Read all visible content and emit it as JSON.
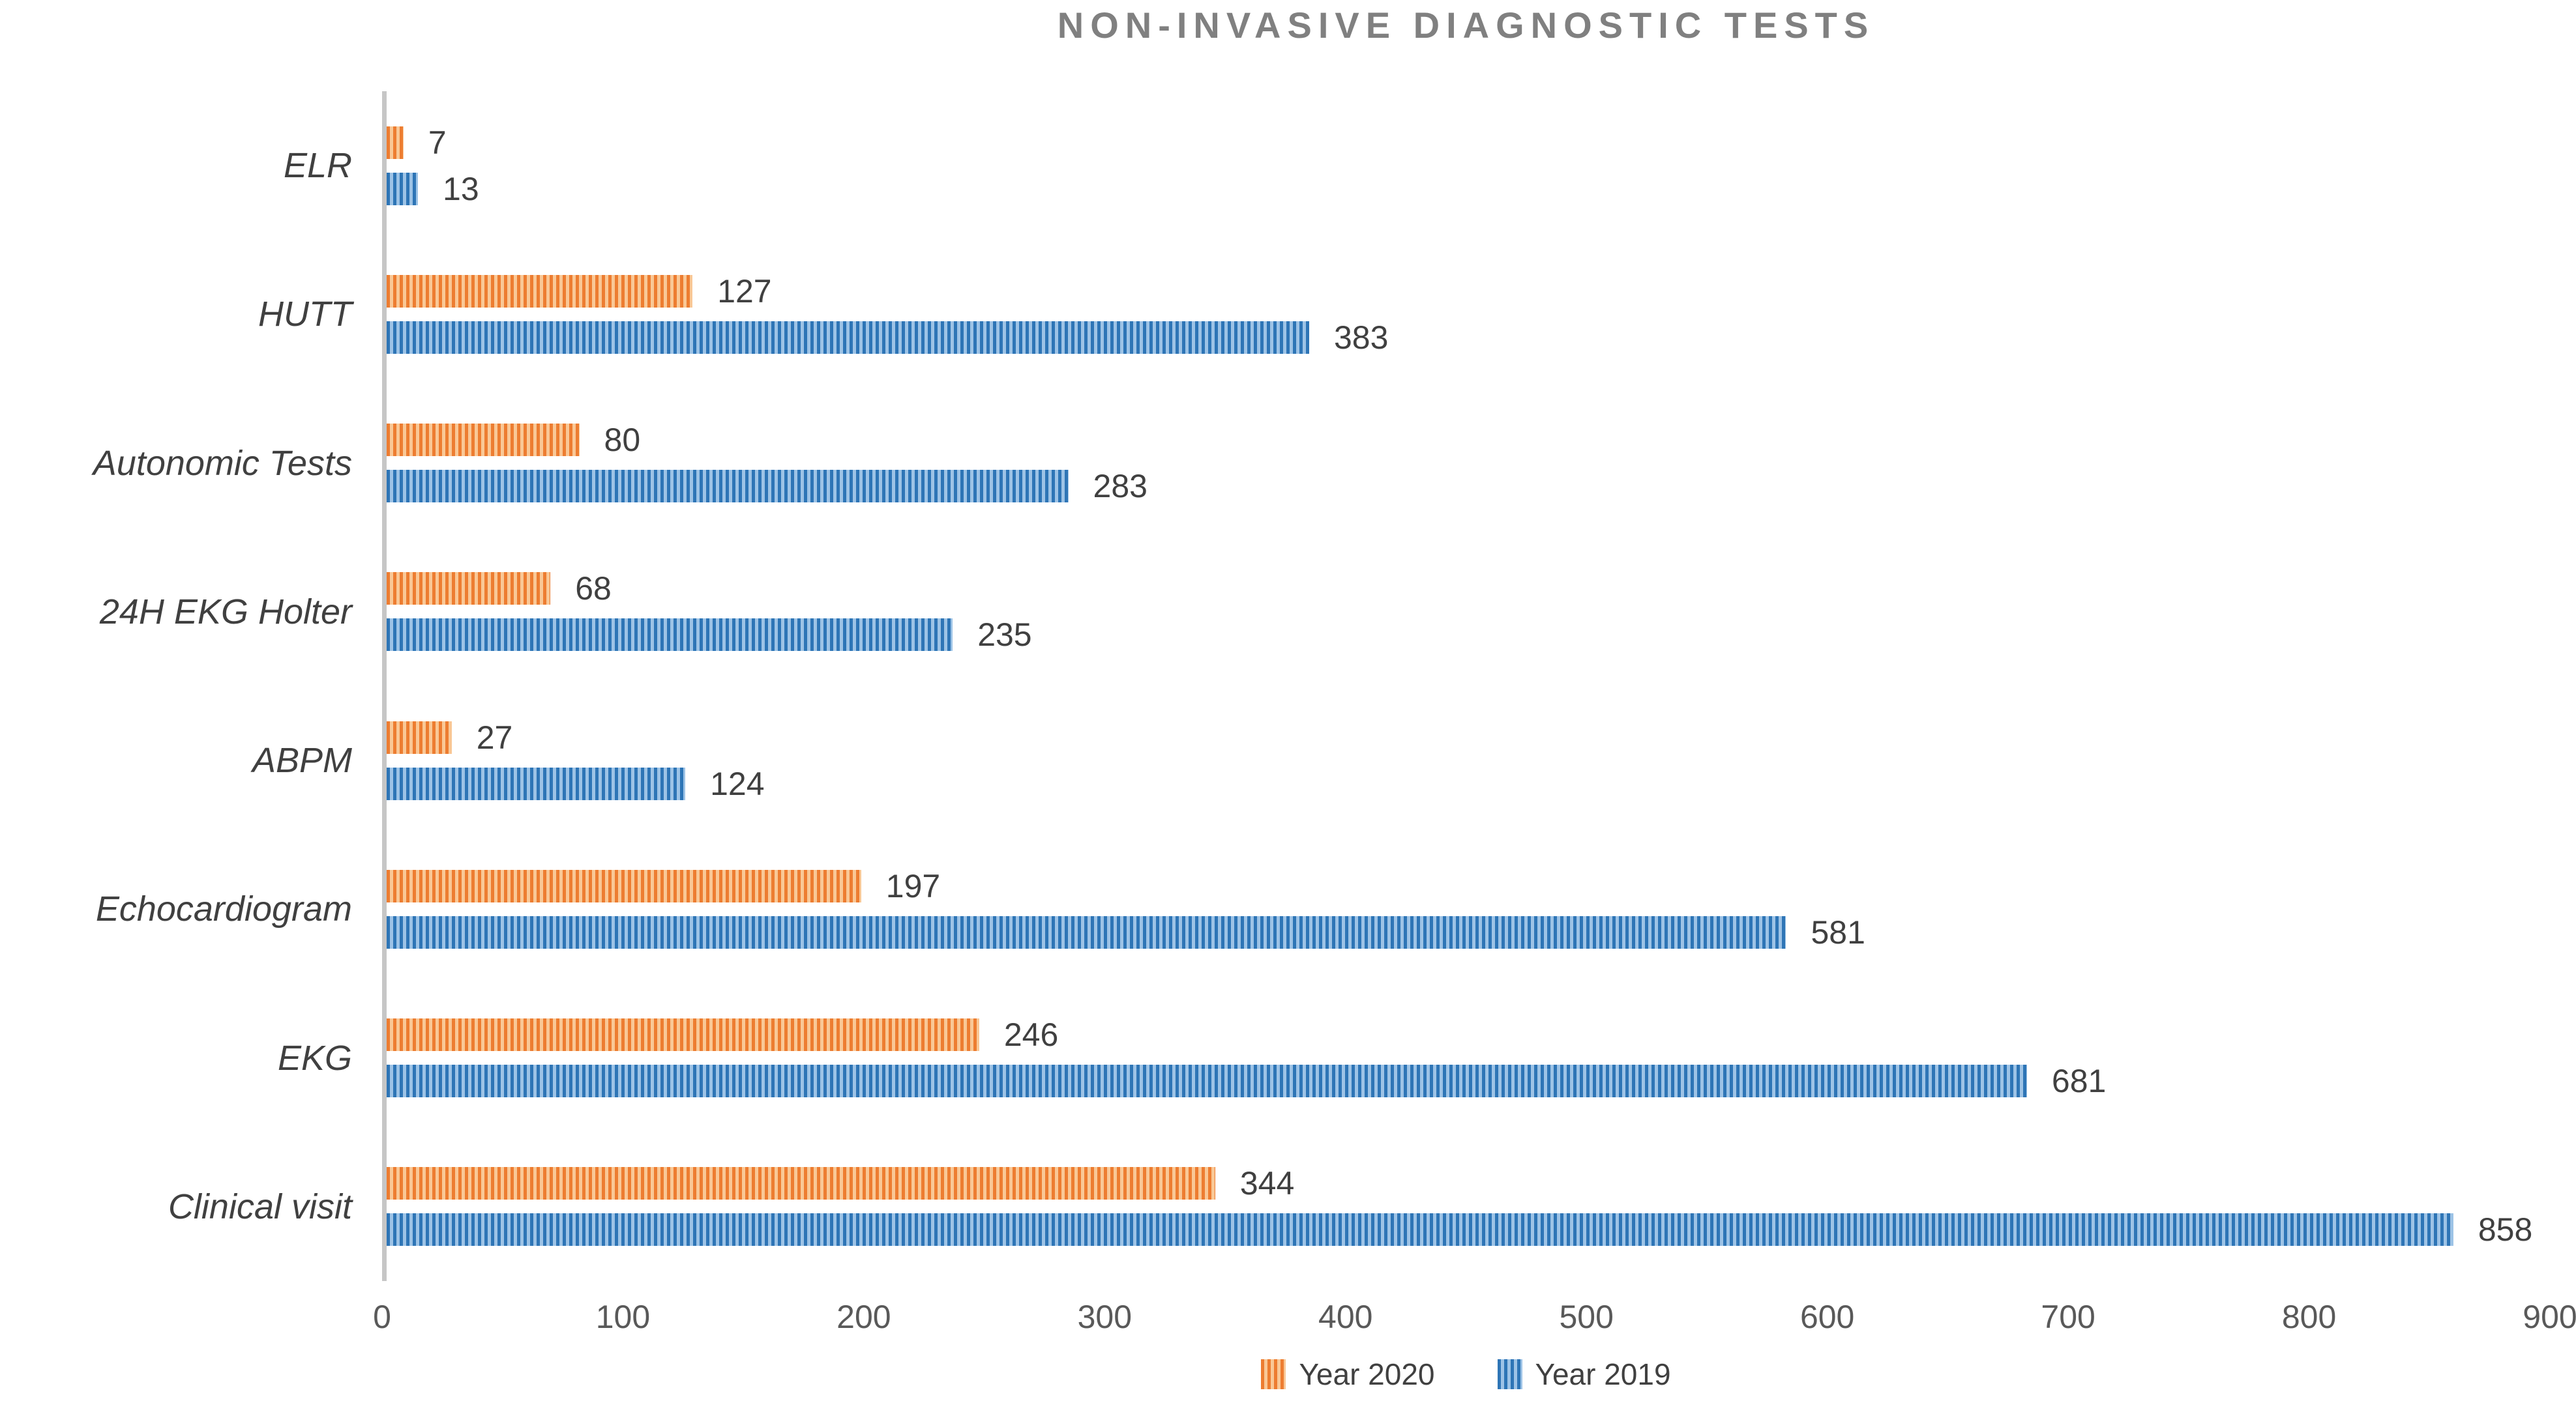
{
  "title": "NON-INVASIVE DIAGNOSTIC TESTS",
  "colors": {
    "title": "#808080",
    "labels": "#404040",
    "ticks": "#595959",
    "axis_line": "#c6c6c6",
    "year2020_dark": "#ED7D31",
    "year2020_light": "#F9C896",
    "year2019_dark": "#2E75B6",
    "year2019_light": "#9DC3E6"
  },
  "chart_data": {
    "type": "bar",
    "orientation": "horizontal",
    "title": "NON-INVASIVE DIAGNOSTIC TESTS",
    "categories": [
      "ELR",
      "HUTT",
      "Autonomic Tests",
      "24H EKG Holter",
      "ABPM",
      "Echocardiogram",
      "EKG",
      "Clinical visit"
    ],
    "series": [
      {
        "name": "Year 2020",
        "color_dark": "#ED7D31",
        "color_light": "#F9C896",
        "values": [
          7,
          127,
          80,
          68,
          27,
          197,
          246,
          344
        ]
      },
      {
        "name": "Year 2019",
        "color_dark": "#2E75B6",
        "color_light": "#9DC3E6",
        "values": [
          13,
          383,
          283,
          235,
          124,
          581,
          681,
          858
        ]
      }
    ],
    "x_ticks": [
      0,
      100,
      200,
      300,
      400,
      500,
      600,
      700,
      800,
      900
    ],
    "xlim": [
      0,
      900
    ],
    "grid": false,
    "data_labels": true,
    "legend_position": "bottom",
    "bar_pattern": "vertical-stripes"
  }
}
